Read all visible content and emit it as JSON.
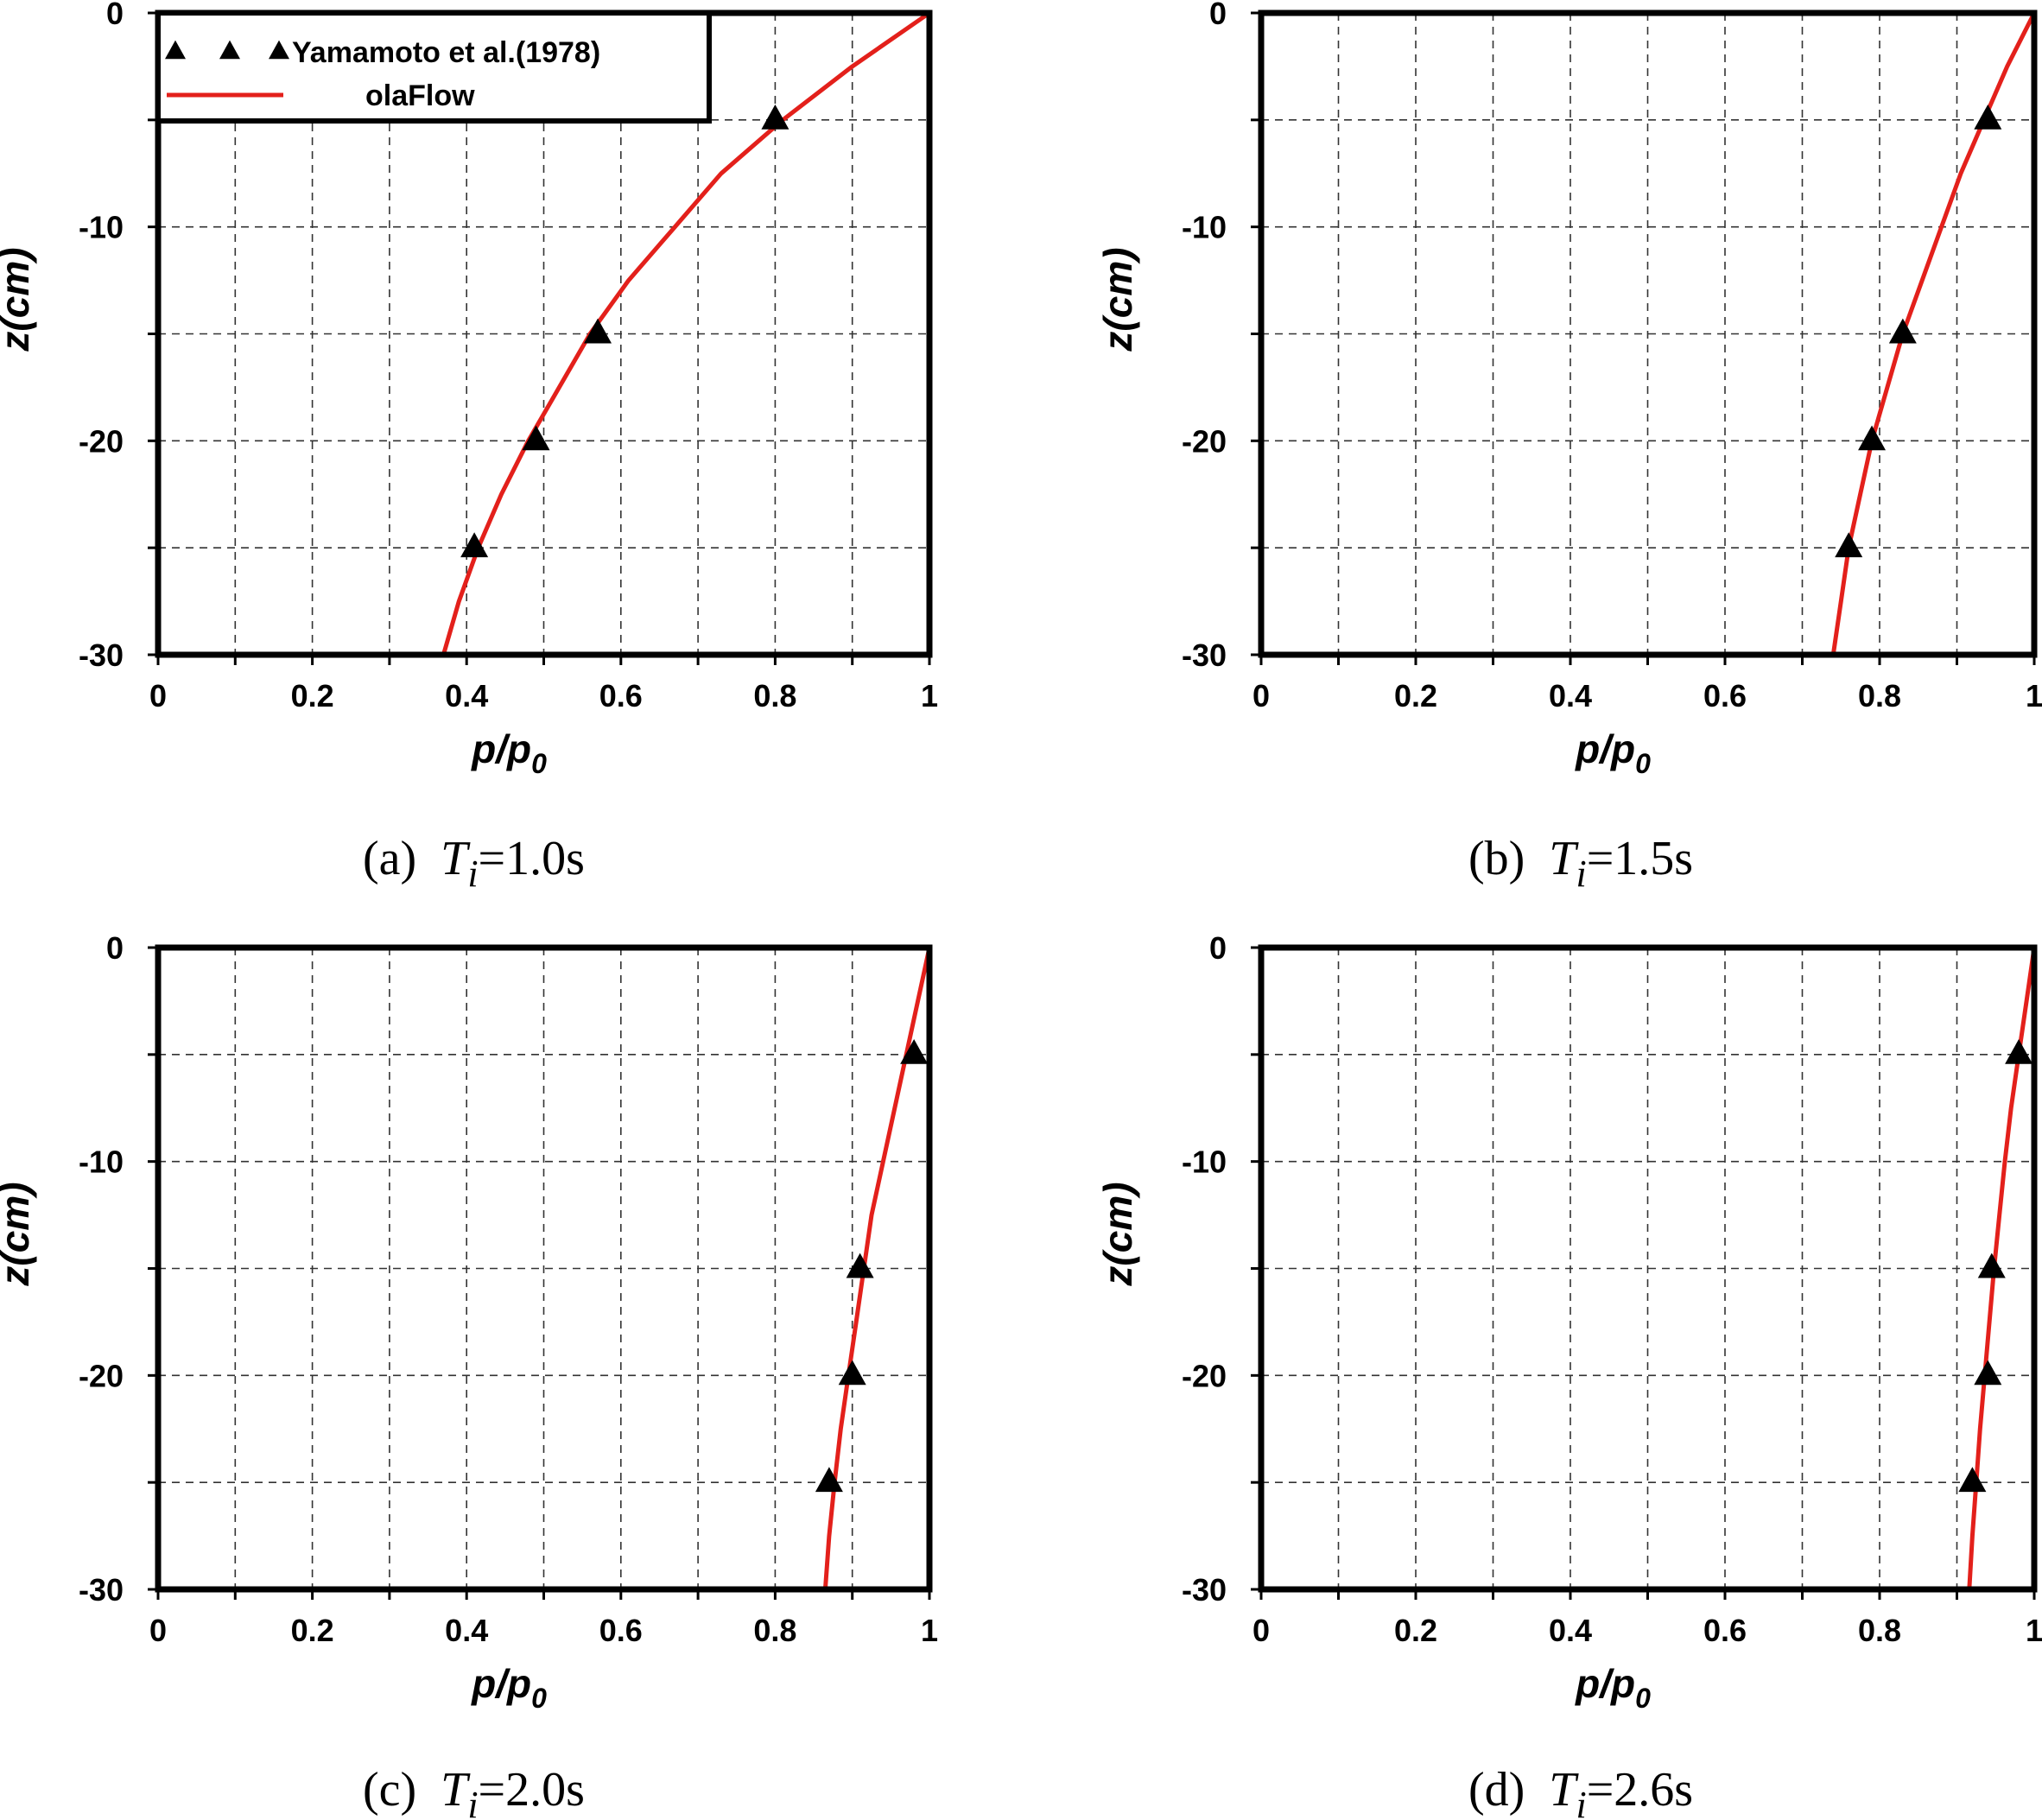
{
  "chart_data": [
    {
      "type": "line",
      "panel": "a",
      "caption": {
        "prefix": "(a)",
        "var": "T",
        "sub": "i",
        "value": "=1.0s"
      },
      "xlabel": {
        "main": "p/p",
        "sub": "0"
      },
      "ylabel": "z(cm)",
      "xlim": [
        0,
        1
      ],
      "ylim": [
        -30,
        0
      ],
      "xticks": [
        "0",
        "0.2",
        "0.4",
        "0.6",
        "0.8",
        "1"
      ],
      "yticks": [
        "0",
        "-10",
        "-20",
        "-30"
      ],
      "grid": true,
      "legend": {
        "position": "top-left",
        "entries": [
          {
            "label": "Yamamoto et al.(1978)",
            "marker": "triangle",
            "color": "#000000"
          },
          {
            "label": "olaFlow",
            "marker": "line",
            "color": "#e3201b"
          }
        ]
      },
      "series": [
        {
          "name": "Yamamoto et al.(1978)",
          "kind": "markers",
          "color": "#000000",
          "points": [
            {
              "x": 0.8,
              "z": -5
            },
            {
              "x": 0.57,
              "z": -15
            },
            {
              "x": 0.49,
              "z": -20
            },
            {
              "x": 0.41,
              "z": -25
            }
          ]
        },
        {
          "name": "olaFlow",
          "kind": "line",
          "color": "#e3201b",
          "points": [
            {
              "x": 1.0,
              "z": 0
            },
            {
              "x": 0.9,
              "z": -2.5
            },
            {
              "x": 0.81,
              "z": -5
            },
            {
              "x": 0.73,
              "z": -7.5
            },
            {
              "x": 0.67,
              "z": -10
            },
            {
              "x": 0.61,
              "z": -12.5
            },
            {
              "x": 0.56,
              "z": -15
            },
            {
              "x": 0.52,
              "z": -17.5
            },
            {
              "x": 0.48,
              "z": -20
            },
            {
              "x": 0.445,
              "z": -22.5
            },
            {
              "x": 0.415,
              "z": -25
            },
            {
              "x": 0.39,
              "z": -27.5
            },
            {
              "x": 0.37,
              "z": -30
            }
          ]
        }
      ]
    },
    {
      "type": "line",
      "panel": "b",
      "caption": {
        "prefix": "(b)",
        "var": "T",
        "sub": "i",
        "value": "=1.5s"
      },
      "xlabel": {
        "main": "p/p",
        "sub": "0"
      },
      "ylabel": "z(cm)",
      "xlim": [
        0,
        1
      ],
      "ylim": [
        -30,
        0
      ],
      "xticks": [
        "0",
        "0.2",
        "0.4",
        "0.6",
        "0.8",
        "1"
      ],
      "yticks": [
        "0",
        "-10",
        "-20",
        "-30"
      ],
      "grid": true,
      "series": [
        {
          "name": "Yamamoto et al.(1978)",
          "kind": "markers",
          "color": "#000000",
          "points": [
            {
              "x": 0.94,
              "z": -5
            },
            {
              "x": 0.83,
              "z": -15
            },
            {
              "x": 0.79,
              "z": -20
            },
            {
              "x": 0.76,
              "z": -25
            }
          ]
        },
        {
          "name": "olaFlow",
          "kind": "line",
          "color": "#e3201b",
          "points": [
            {
              "x": 1.0,
              "z": 0
            },
            {
              "x": 0.965,
              "z": -2.5
            },
            {
              "x": 0.935,
              "z": -5
            },
            {
              "x": 0.905,
              "z": -7.5
            },
            {
              "x": 0.88,
              "z": -10
            },
            {
              "x": 0.855,
              "z": -12.5
            },
            {
              "x": 0.83,
              "z": -15
            },
            {
              "x": 0.81,
              "z": -17.5
            },
            {
              "x": 0.79,
              "z": -20
            },
            {
              "x": 0.775,
              "z": -22.5
            },
            {
              "x": 0.76,
              "z": -25
            },
            {
              "x": 0.75,
              "z": -27.5
            },
            {
              "x": 0.74,
              "z": -30
            }
          ]
        }
      ]
    },
    {
      "type": "line",
      "panel": "c",
      "caption": {
        "prefix": "(c)",
        "var": "T",
        "sub": "i",
        "value": "=2.0s"
      },
      "xlabel": {
        "main": "p/p",
        "sub": "0"
      },
      "ylabel": "z(cm)",
      "xlim": [
        0,
        1
      ],
      "ylim": [
        -30,
        0
      ],
      "xticks": [
        "0",
        "0.2",
        "0.4",
        "0.6",
        "0.8",
        "1"
      ],
      "yticks": [
        "0",
        "-10",
        "-20",
        "-30"
      ],
      "grid": true,
      "series": [
        {
          "name": "Yamamoto et al.(1978)",
          "kind": "markers",
          "color": "#000000",
          "points": [
            {
              "x": 0.98,
              "z": -5
            },
            {
              "x": 0.91,
              "z": -15
            },
            {
              "x": 0.9,
              "z": -20
            },
            {
              "x": 0.87,
              "z": -25
            }
          ]
        },
        {
          "name": "olaFlow",
          "kind": "line",
          "color": "#e3201b",
          "points": [
            {
              "x": 1.0,
              "z": 0
            },
            {
              "x": 0.985,
              "z": -2.5
            },
            {
              "x": 0.97,
              "z": -5
            },
            {
              "x": 0.955,
              "z": -7.5
            },
            {
              "x": 0.94,
              "z": -10
            },
            {
              "x": 0.925,
              "z": -12.5
            },
            {
              "x": 0.915,
              "z": -15
            },
            {
              "x": 0.905,
              "z": -17.5
            },
            {
              "x": 0.895,
              "z": -20
            },
            {
              "x": 0.885,
              "z": -22.5
            },
            {
              "x": 0.877,
              "z": -25
            },
            {
              "x": 0.87,
              "z": -27.5
            },
            {
              "x": 0.865,
              "z": -30
            }
          ]
        }
      ]
    },
    {
      "type": "line",
      "panel": "d",
      "caption": {
        "prefix": "(d)",
        "var": "T",
        "sub": "i",
        "value": "=2.6s"
      },
      "xlabel": {
        "main": "p/p",
        "sub": "0"
      },
      "ylabel": "z(cm)",
      "xlim": [
        0,
        1
      ],
      "ylim": [
        -30,
        0
      ],
      "xticks": [
        "0",
        "0.2",
        "0.4",
        "0.6",
        "0.8",
        "1"
      ],
      "yticks": [
        "0",
        "-10",
        "-20",
        "-30"
      ],
      "grid": true,
      "series": [
        {
          "name": "Yamamoto et al.(1978)",
          "kind": "markers",
          "color": "#000000",
          "points": [
            {
              "x": 0.98,
              "z": -5
            },
            {
              "x": 0.945,
              "z": -15
            },
            {
              "x": 0.94,
              "z": -20
            },
            {
              "x": 0.92,
              "z": -25
            }
          ]
        },
        {
          "name": "olaFlow",
          "kind": "line",
          "color": "#e3201b",
          "points": [
            {
              "x": 1.0,
              "z": 0
            },
            {
              "x": 0.99,
              "z": -2.5
            },
            {
              "x": 0.98,
              "z": -5
            },
            {
              "x": 0.97,
              "z": -7.5
            },
            {
              "x": 0.962,
              "z": -10
            },
            {
              "x": 0.955,
              "z": -12.5
            },
            {
              "x": 0.948,
              "z": -15
            },
            {
              "x": 0.942,
              "z": -17.5
            },
            {
              "x": 0.936,
              "z": -20
            },
            {
              "x": 0.93,
              "z": -22.5
            },
            {
              "x": 0.925,
              "z": -25
            },
            {
              "x": 0.92,
              "z": -27.5
            },
            {
              "x": 0.916,
              "z": -30
            }
          ]
        }
      ]
    }
  ]
}
